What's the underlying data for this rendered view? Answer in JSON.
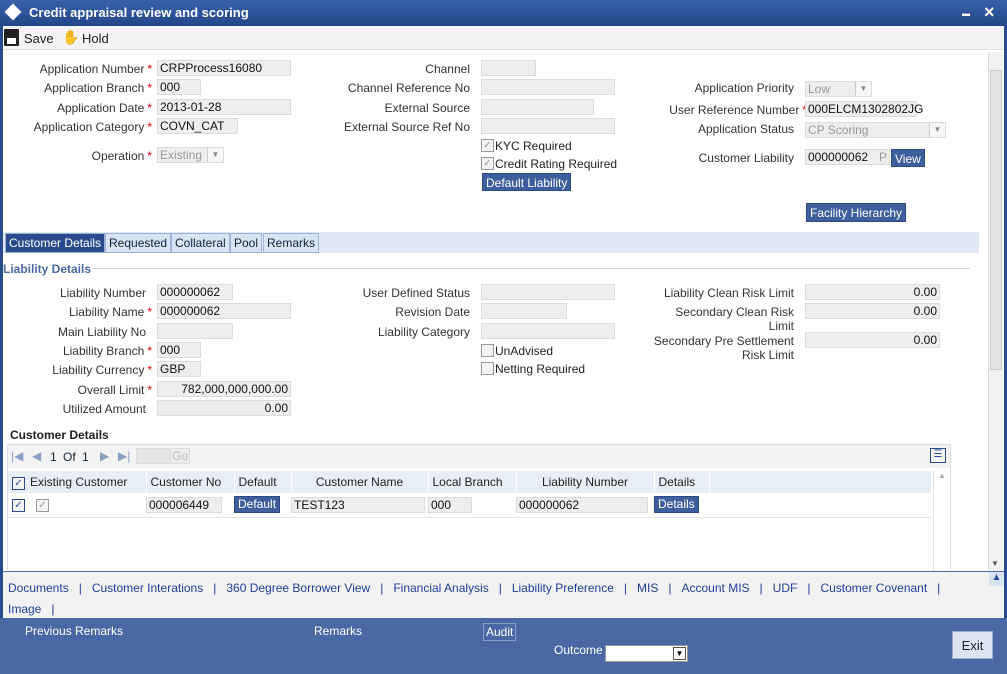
{
  "window": {
    "title": "Credit appraisal review and scoring",
    "close": "×",
    "minimize": "▬"
  },
  "toolbar": {
    "save": "Save",
    "hold": "Hold"
  },
  "header": {
    "application_number": {
      "label": "Application Number",
      "value": "CRPProcess16080"
    },
    "application_branch": {
      "label": "Application Branch",
      "value": "000"
    },
    "application_date": {
      "label": "Application Date",
      "value": "2013-01-28"
    },
    "application_category": {
      "label": "Application Category",
      "value": "COVN_CAT"
    },
    "operation": {
      "label": "Operation",
      "value": "Existing"
    },
    "channel": {
      "label": "Channel",
      "value": ""
    },
    "channel_reference_no": {
      "label": "Channel Reference No",
      "value": ""
    },
    "external_source": {
      "label": "External Source",
      "value": ""
    },
    "external_source_ref_no": {
      "label": "External Source Ref No",
      "value": ""
    },
    "kyc_required": {
      "label": "KYC Required",
      "checked": true
    },
    "credit_rating_required": {
      "label": "Credit Rating Required",
      "checked": true
    },
    "default_liability": "Default Liability",
    "application_priority": {
      "label": "Application Priority",
      "value": "Low"
    },
    "user_reference_number": {
      "label": "User Reference Number",
      "value": "000ELCM1302802JG"
    },
    "application_status": {
      "label": "Application Status",
      "value": "CP Scoring"
    },
    "customer_liability": {
      "label": "Customer Liability",
      "value": "000000062",
      "suffix": "P",
      "view": "View"
    },
    "facility_hierarchy": "Facility Hierarchy"
  },
  "tabs": [
    "Customer Details",
    "Requested",
    "Collateral",
    "Pool",
    "Remarks"
  ],
  "liability": {
    "section_title": "Liability Details",
    "liability_number": {
      "label": "Liability Number",
      "value": "000000062"
    },
    "liability_name": {
      "label": "Liability Name",
      "value": "000000062"
    },
    "main_liability_no": {
      "label": "Main Liability No",
      "value": ""
    },
    "liability_branch": {
      "label": "Liability Branch",
      "value": "000"
    },
    "liability_currency": {
      "label": "Liability Currency",
      "value": "GBP"
    },
    "overall_limit": {
      "label": "Overall Limit",
      "value": "782,000,000,000.00"
    },
    "utilized_amount": {
      "label": "Utilized Amount",
      "value": "0.00"
    },
    "user_defined_status": {
      "label": "User Defined Status",
      "value": ""
    },
    "revision_date": {
      "label": "Revision Date",
      "value": ""
    },
    "liability_category": {
      "label": "Liability Category",
      "value": ""
    },
    "unadvised": {
      "label": "UnAdvised",
      "checked": false
    },
    "netting_required": {
      "label": "Netting Required",
      "checked": false
    },
    "clean_risk_limit": {
      "label": "Liability Clean Risk Limit",
      "value": "0.00"
    },
    "secondary_clean_risk_limit": {
      "label1": "Secondary Clean Risk",
      "label2": "Limit",
      "value": "0.00"
    },
    "secondary_pre_settlement": {
      "label1": "Secondary Pre Settlement",
      "label2": "Risk Limit",
      "value": "0.00"
    }
  },
  "customer_details": {
    "title": "Customer Details",
    "pager": {
      "current": "1",
      "of": "Of",
      "total": "1",
      "go": "Go"
    },
    "columns": [
      "Existing Customer",
      "Customer No",
      "Default",
      "Customer Name",
      "Local Branch",
      "Liability Number",
      "Details"
    ],
    "rows": [
      {
        "customer_no": "000006449",
        "default": "Default",
        "customer_name": "TEST123",
        "local_branch": "000",
        "liability_number": "000000062",
        "details": "Details"
      }
    ]
  },
  "links": [
    "Documents",
    "Customer Interations",
    "360 Degree Borrower View",
    "Financial Analysis",
    "Liability Preference",
    "MIS",
    "Account MIS",
    "UDF",
    "Customer Covenant",
    "Image"
  ],
  "footer": {
    "previous_remarks": "Previous Remarks",
    "remarks": "Remarks",
    "audit": "Audit",
    "outcome": "Outcome",
    "outcome_value": "",
    "exit": "Exit"
  }
}
